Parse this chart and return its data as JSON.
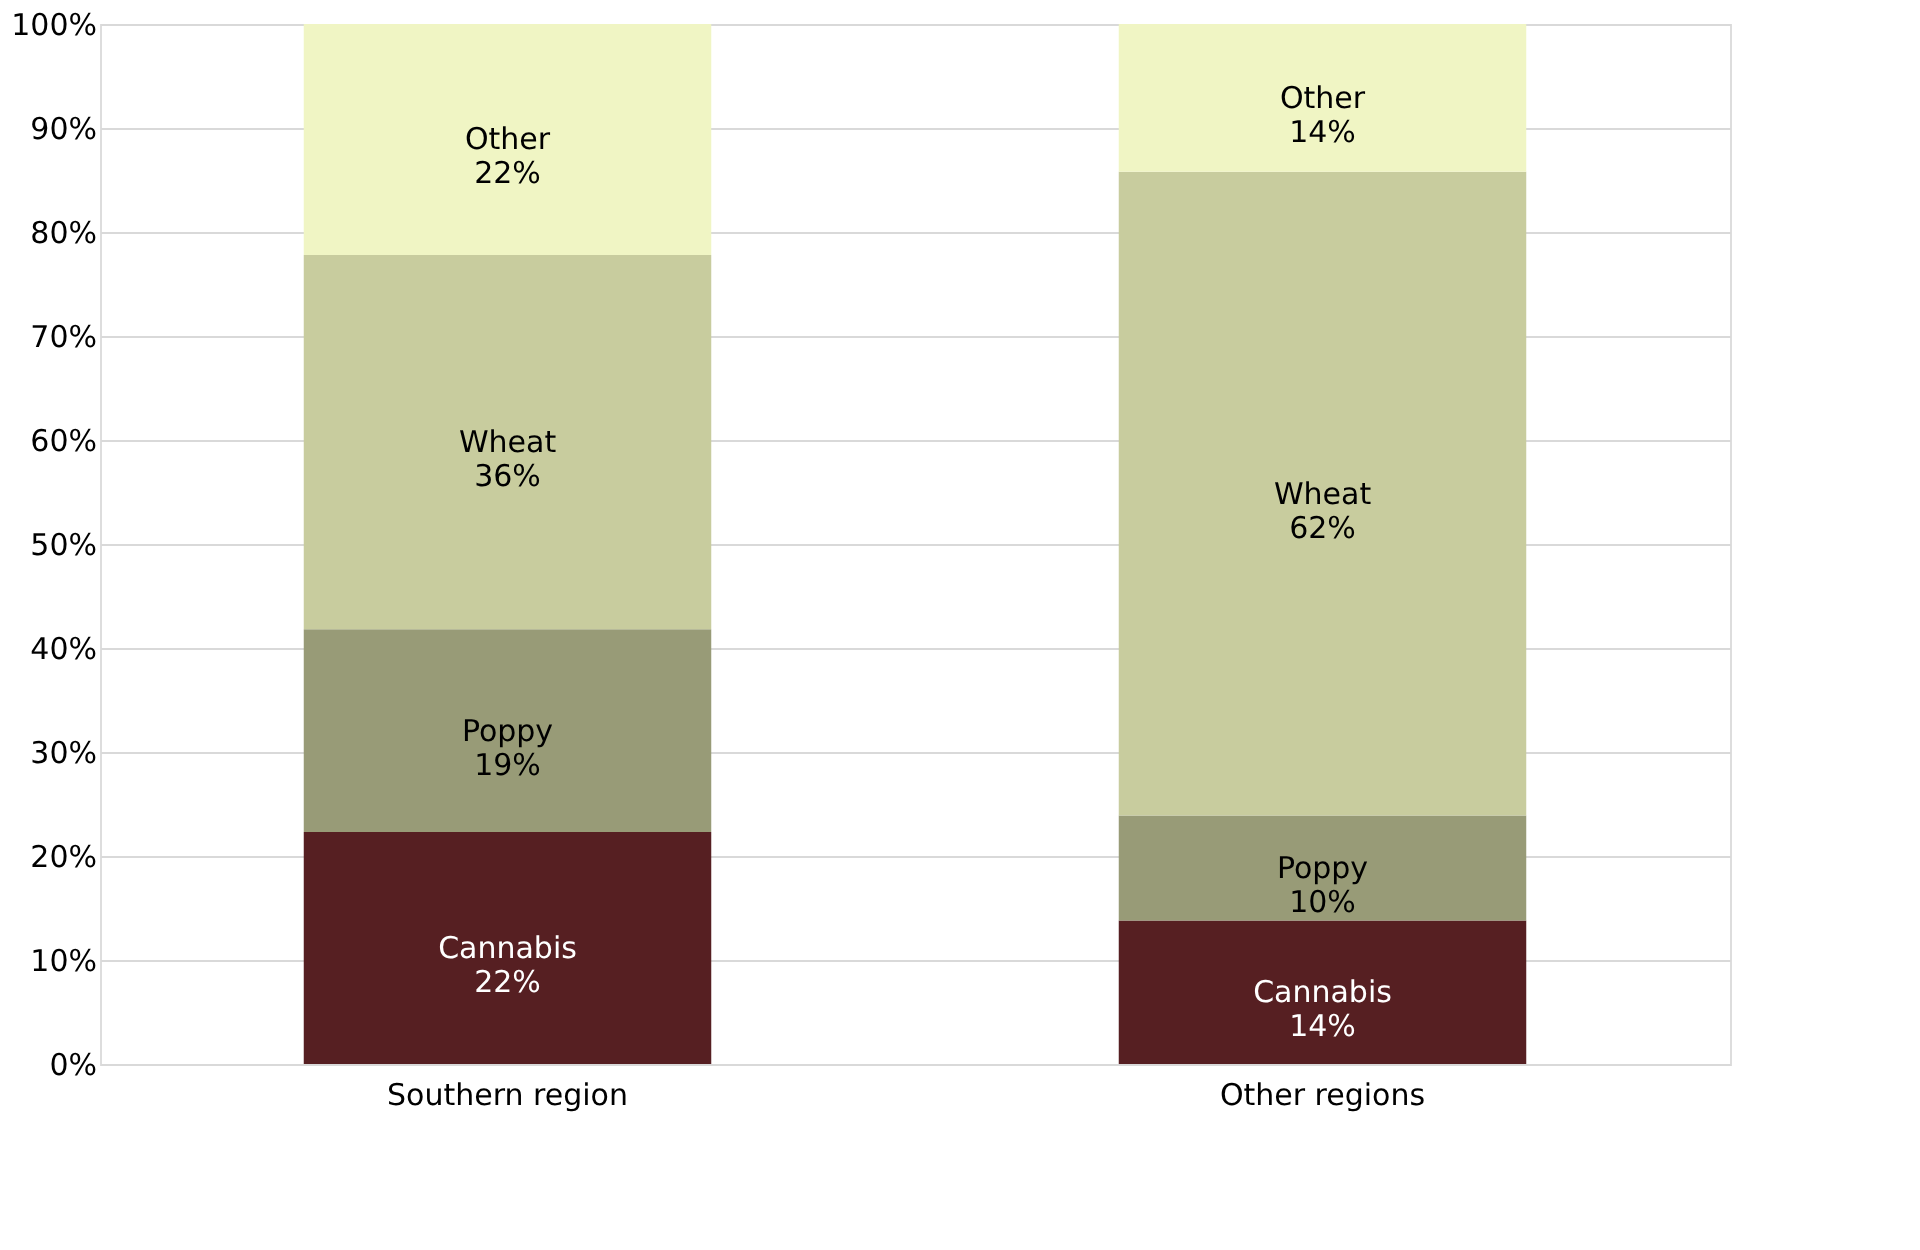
{
  "chart_data": {
    "type": "bar",
    "stacked": true,
    "categories": [
      "Southern region",
      "Other regions"
    ],
    "series": [
      {
        "name": "Cannabis",
        "color": "#561f22",
        "values": [
          22.3,
          13.8
        ],
        "value_labels": [
          "22%",
          "14%"
        ]
      },
      {
        "name": "Poppy",
        "color": "#989b77",
        "values": [
          19.5,
          10.1
        ],
        "value_labels": [
          "19%",
          "10%"
        ]
      },
      {
        "name": "Wheat",
        "color": "#c8cc9e",
        "values": [
          36.0,
          61.9
        ],
        "value_labels": [
          "36%",
          "62%"
        ]
      },
      {
        "name": "Other",
        "color": "#f0f5c4",
        "values": [
          22.2,
          14.2
        ],
        "value_labels": [
          "22%",
          "14%"
        ]
      }
    ],
    "ylim": [
      0,
      100
    ],
    "yticks": [
      {
        "value": 0,
        "label": "0%"
      },
      {
        "value": 10,
        "label": "10%"
      },
      {
        "value": 20,
        "label": "20%"
      },
      {
        "value": 30,
        "label": "30%"
      },
      {
        "value": 40,
        "label": "40%"
      },
      {
        "value": 50,
        "label": "50%"
      },
      {
        "value": 60,
        "label": "60%"
      },
      {
        "value": 70,
        "label": "70%"
      },
      {
        "value": 80,
        "label": "80%"
      },
      {
        "value": 90,
        "label": "90%"
      },
      {
        "value": 100,
        "label": "100%"
      }
    ],
    "grid": "y"
  }
}
